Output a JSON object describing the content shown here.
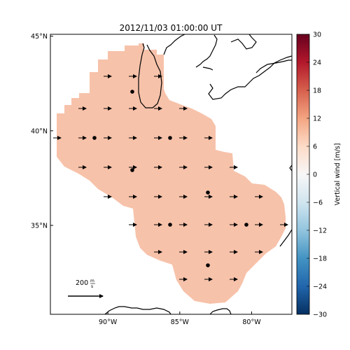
{
  "title": "2012/11/03 01:00:00 UT",
  "map": {
    "lat_labels": [
      "45°N",
      "40°N",
      "35°N"
    ],
    "lon_labels": [
      "90°W",
      "85°W",
      "80°W"
    ],
    "lat_ticks": [
      45,
      40,
      35
    ],
    "lon_ticks": [
      -90,
      -85,
      -80
    ],
    "extent": {
      "lon_min": -94,
      "lon_max": -77.2,
      "lat_min": 30.3,
      "lat_max": 45.1
    },
    "field_color": "#f7c2aa",
    "coast_color": "#000000"
  },
  "scale_arrow": {
    "label_value": "200",
    "label_num": "m",
    "label_den": "s"
  },
  "colorbar": {
    "label": "Vertical wind [m/s]",
    "min": -30,
    "max": 30,
    "ticks": [
      "30",
      "24",
      "18",
      "12",
      "6",
      "0",
      "−6",
      "−12",
      "−18",
      "−24",
      "−30"
    ],
    "tick_values": [
      30,
      24,
      18,
      12,
      6,
      0,
      -6,
      -12,
      -18,
      -24,
      -30
    ],
    "colormap": "RdBu_r",
    "stops": [
      "#053061",
      "#2166ac",
      "#4393c3",
      "#92c5de",
      "#d1e5f0",
      "#f7f7f7",
      "#fddbc7",
      "#f4a582",
      "#d6604d",
      "#b2182b",
      "#67001f"
    ]
  }
}
